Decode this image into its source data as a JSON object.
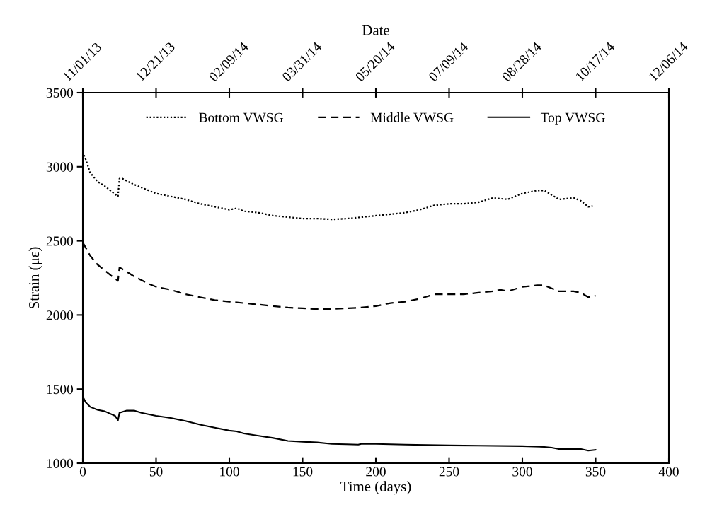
{
  "chart_data": {
    "type": "line",
    "xlabel": "Time (days)",
    "ylabel": "Strain (με)",
    "x2label": "Date",
    "xlim": [
      0,
      400
    ],
    "xticks": [
      0,
      50,
      100,
      150,
      200,
      250,
      300,
      350,
      400
    ],
    "ylim": [
      1000,
      3500
    ],
    "yticks": [
      1000,
      1500,
      2000,
      2500,
      3000,
      3500
    ],
    "x2lim": [
      "2013-11-01",
      "2014-12-06"
    ],
    "x2ticks": [
      {
        "value": "2013-11-01",
        "label": "11/01/13"
      },
      {
        "value": "2013-12-21",
        "label": "12/21/13"
      },
      {
        "value": "2014-02-09",
        "label": "02/09/14"
      },
      {
        "value": "2014-03-31",
        "label": "03/31/14"
      },
      {
        "value": "2014-05-20",
        "label": "05/20/14"
      },
      {
        "value": "2014-07-09",
        "label": "07/09/14"
      },
      {
        "value": "2014-08-28",
        "label": "08/28/14"
      },
      {
        "value": "2014-10-17",
        "label": "10/17/14"
      },
      {
        "value": "2014-12-06",
        "label": "12/06/14"
      }
    ],
    "grid": false,
    "legend": "top",
    "marker": "none",
    "series": [
      {
        "name": "Bottom VWSG",
        "color": "#000000",
        "line_style": "dotted",
        "x": [
          0,
          2,
          5,
          10,
          15,
          20,
          24,
          25,
          27,
          35,
          45,
          50,
          60,
          70,
          80,
          90,
          100,
          105,
          110,
          120,
          130,
          140,
          150,
          160,
          170,
          180,
          190,
          200,
          210,
          220,
          230,
          240,
          250,
          260,
          270,
          280,
          290,
          300,
          310,
          315,
          320,
          325,
          335,
          340,
          345,
          348
        ],
        "values": [
          3100,
          3050,
          2960,
          2900,
          2870,
          2830,
          2800,
          2920,
          2920,
          2880,
          2840,
          2820,
          2800,
          2780,
          2750,
          2730,
          2710,
          2720,
          2700,
          2690,
          2670,
          2660,
          2650,
          2650,
          2645,
          2650,
          2660,
          2670,
          2680,
          2690,
          2710,
          2740,
          2750,
          2750,
          2760,
          2790,
          2780,
          2820,
          2840,
          2840,
          2810,
          2780,
          2790,
          2770,
          2730,
          2735
        ]
      },
      {
        "name": "Middle VWSG",
        "color": "#000000",
        "line_style": "dashed",
        "x": [
          0,
          5,
          10,
          15,
          20,
          24,
          25,
          27,
          35,
          45,
          50,
          60,
          70,
          80,
          90,
          100,
          110,
          120,
          130,
          140,
          150,
          160,
          170,
          180,
          190,
          200,
          210,
          220,
          230,
          240,
          250,
          260,
          270,
          280,
          285,
          290,
          300,
          310,
          315,
          320,
          325,
          335,
          340,
          345,
          350
        ],
        "values": [
          2490,
          2400,
          2340,
          2300,
          2260,
          2230,
          2320,
          2310,
          2260,
          2210,
          2190,
          2170,
          2140,
          2120,
          2100,
          2090,
          2080,
          2070,
          2060,
          2050,
          2045,
          2040,
          2040,
          2045,
          2050,
          2060,
          2080,
          2090,
          2110,
          2140,
          2140,
          2140,
          2150,
          2160,
          2170,
          2160,
          2190,
          2200,
          2200,
          2180,
          2160,
          2160,
          2150,
          2120,
          2130
        ]
      },
      {
        "name": "Top VWSG",
        "color": "#000000",
        "line_style": "solid",
        "x": [
          0,
          2,
          5,
          10,
          15,
          22,
          24,
          25,
          30,
          35,
          40,
          50,
          60,
          70,
          80,
          90,
          100,
          105,
          110,
          120,
          130,
          140,
          150,
          160,
          170,
          180,
          188,
          190,
          200,
          220,
          250,
          270,
          300,
          315,
          320,
          325,
          340,
          345,
          350
        ],
        "values": [
          1450,
          1410,
          1380,
          1360,
          1350,
          1320,
          1290,
          1340,
          1355,
          1355,
          1340,
          1320,
          1305,
          1285,
          1260,
          1240,
          1220,
          1215,
          1200,
          1185,
          1170,
          1150,
          1145,
          1140,
          1130,
          1128,
          1125,
          1130,
          1130,
          1125,
          1120,
          1118,
          1115,
          1110,
          1105,
          1095,
          1095,
          1085,
          1090
        ]
      }
    ]
  }
}
